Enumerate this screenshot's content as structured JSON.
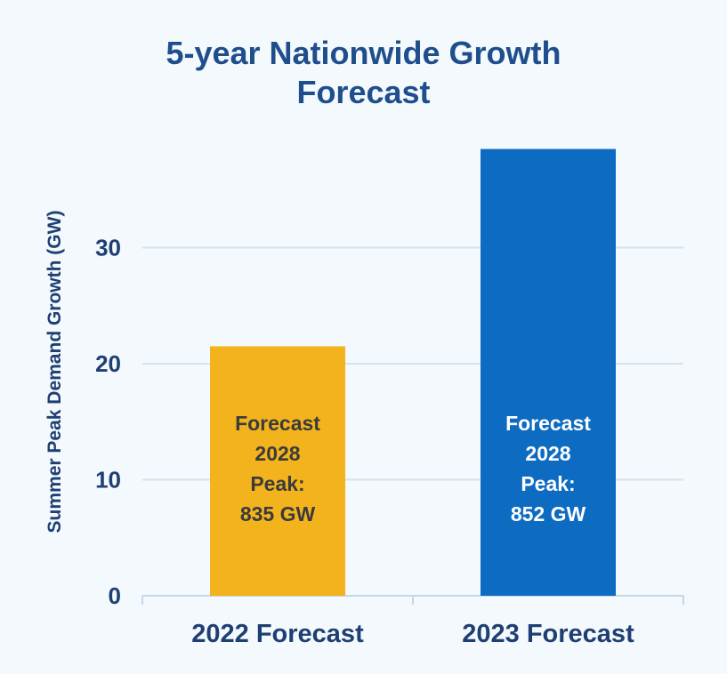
{
  "chart_data": {
    "type": "bar",
    "title_lines": [
      "5-year Nationwide Growth",
      "Forecast"
    ],
    "ylabel": "Summer Peak Demand Growth (GW)",
    "xlabel": "",
    "ylim": [
      0,
      40
    ],
    "yticks": [
      0,
      10,
      20,
      30
    ],
    "grid": true,
    "categories": [
      "2022 Forecast",
      "2023 Forecast"
    ],
    "values": [
      21.5,
      38.5
    ],
    "colors": [
      "#f2b31d",
      "#0d6cc1"
    ],
    "bar_label_colors": [
      "#3b3b3b",
      "#ffffff"
    ],
    "bar_labels": [
      [
        "Forecast",
        "2028",
        "Peak:",
        "835 GW"
      ],
      [
        "Forecast",
        "2028",
        "Peak:",
        "852 GW"
      ]
    ]
  }
}
